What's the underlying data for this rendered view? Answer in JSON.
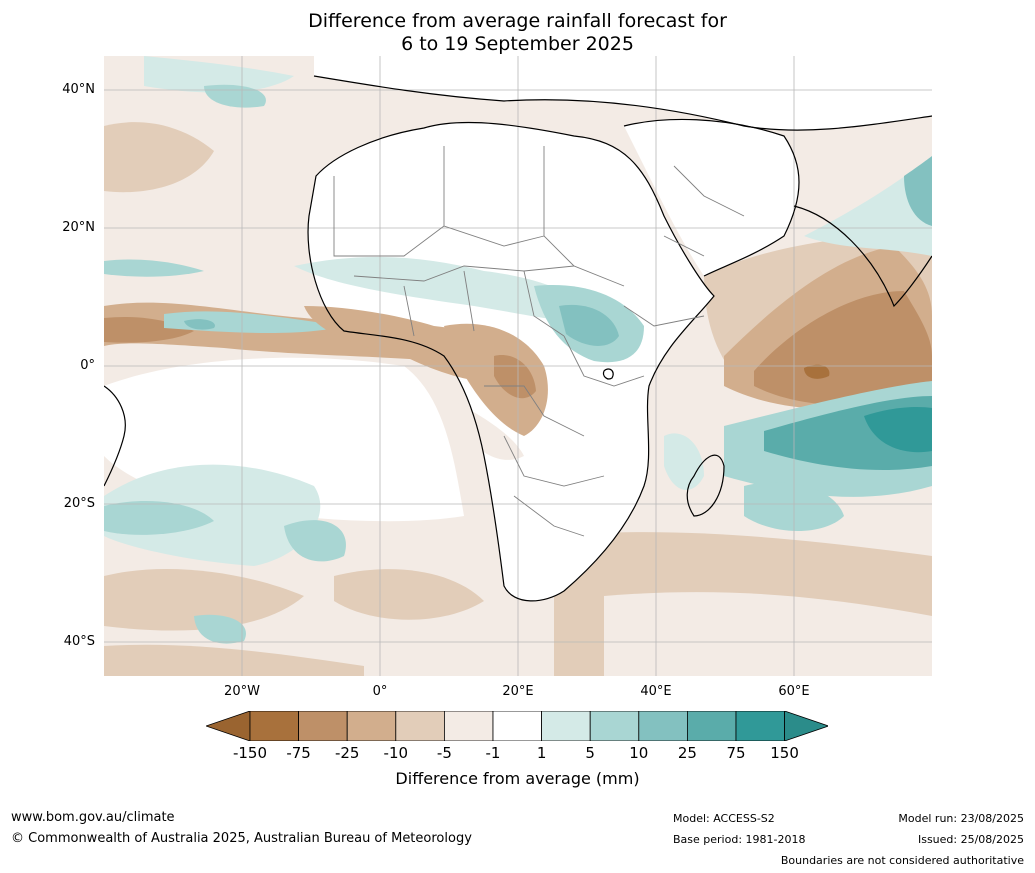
{
  "title_line1": "Difference from average rainfall forecast for",
  "title_line2": "6 to 19 September 2025",
  "lat_labels": [
    "40°N",
    "20°N",
    "0°",
    "20°S",
    "40°S"
  ],
  "lon_labels": [
    "20°W",
    "0°",
    "20°E",
    "40°E",
    "60°E"
  ],
  "colorbar": {
    "ticks": [
      "-150",
      "-75",
      "-25",
      "-10",
      "-5",
      "-1",
      "1",
      "5",
      "10",
      "25",
      "75",
      "150"
    ],
    "colors": [
      "#a8713c",
      "#be9068",
      "#d2ae8d",
      "#e2cdb9",
      "#f3ebe5",
      "#ffffff",
      "#d4eae7",
      "#a9d6d3",
      "#83c1c0",
      "#5aacaa",
      "#309998"
    ],
    "under_color": "#9a6430",
    "over_color": "#2b8c8a",
    "title": "Difference from average (mm)"
  },
  "footer": {
    "url": "www.bom.gov.au/climate",
    "copyright": "© Commonwealth of Australia 2025, Australian Bureau of Meteorology",
    "model": "Model: ACCESS-S2",
    "base_period": "Base period: 1981-2018",
    "model_run": "Model run: 23/08/2025",
    "issued": "Issued: 25/08/2025",
    "disclaimer": "Boundaries are not considered authoritative"
  }
}
